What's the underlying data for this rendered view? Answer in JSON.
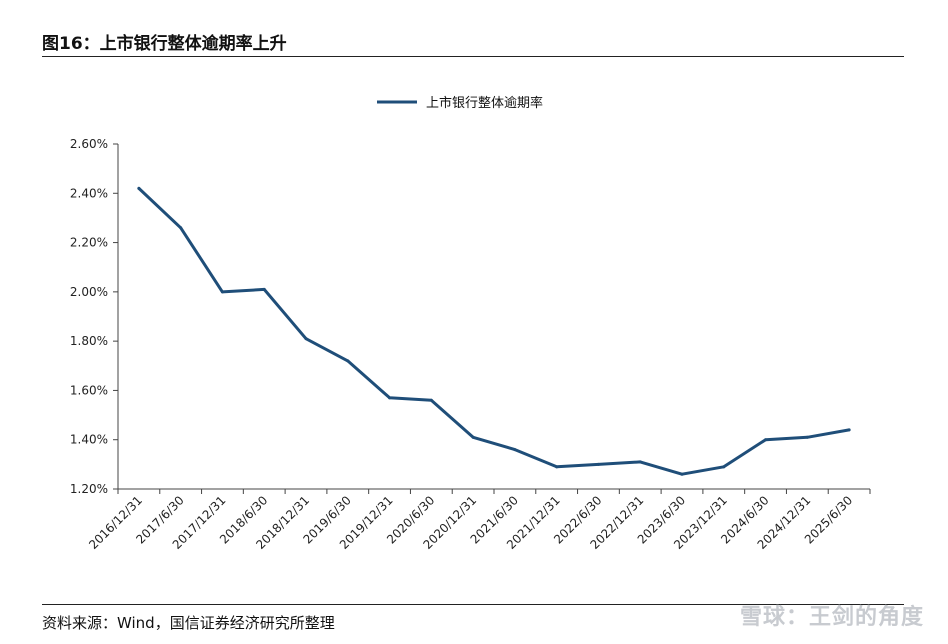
{
  "figure": {
    "title": "图16：上市银行整体逾期率上升",
    "source": "资料来源：Wind，国信证券经济研究所整理",
    "watermark": "雪球：王剑的角度"
  },
  "chart_data": {
    "type": "line",
    "x": [
      "2016/12/31",
      "2017/6/30",
      "2017/12/31",
      "2018/6/30",
      "2018/12/31",
      "2019/6/30",
      "2019/12/31",
      "2020/6/30",
      "2020/12/31",
      "2021/6/30",
      "2021/12/31",
      "2022/6/30",
      "2022/12/31",
      "2023/6/30",
      "2023/12/31",
      "2024/6/30",
      "2024/12/31",
      "2025/6/30"
    ],
    "series": [
      {
        "name": "上市银行整体逾期率",
        "values": [
          2.42,
          2.26,
          2.0,
          2.01,
          1.81,
          1.72,
          1.57,
          1.56,
          1.41,
          1.36,
          1.29,
          1.3,
          1.31,
          1.26,
          1.29,
          1.4,
          1.41,
          1.44
        ],
        "color": "#1f4e79"
      }
    ],
    "yticks": [
      "2.60%",
      "2.40%",
      "2.20%",
      "2.00%",
      "1.80%",
      "1.60%",
      "1.40%",
      "1.20%"
    ],
    "ylim": [
      1.2,
      2.6
    ],
    "legend_position": "top-center",
    "grid": false
  }
}
